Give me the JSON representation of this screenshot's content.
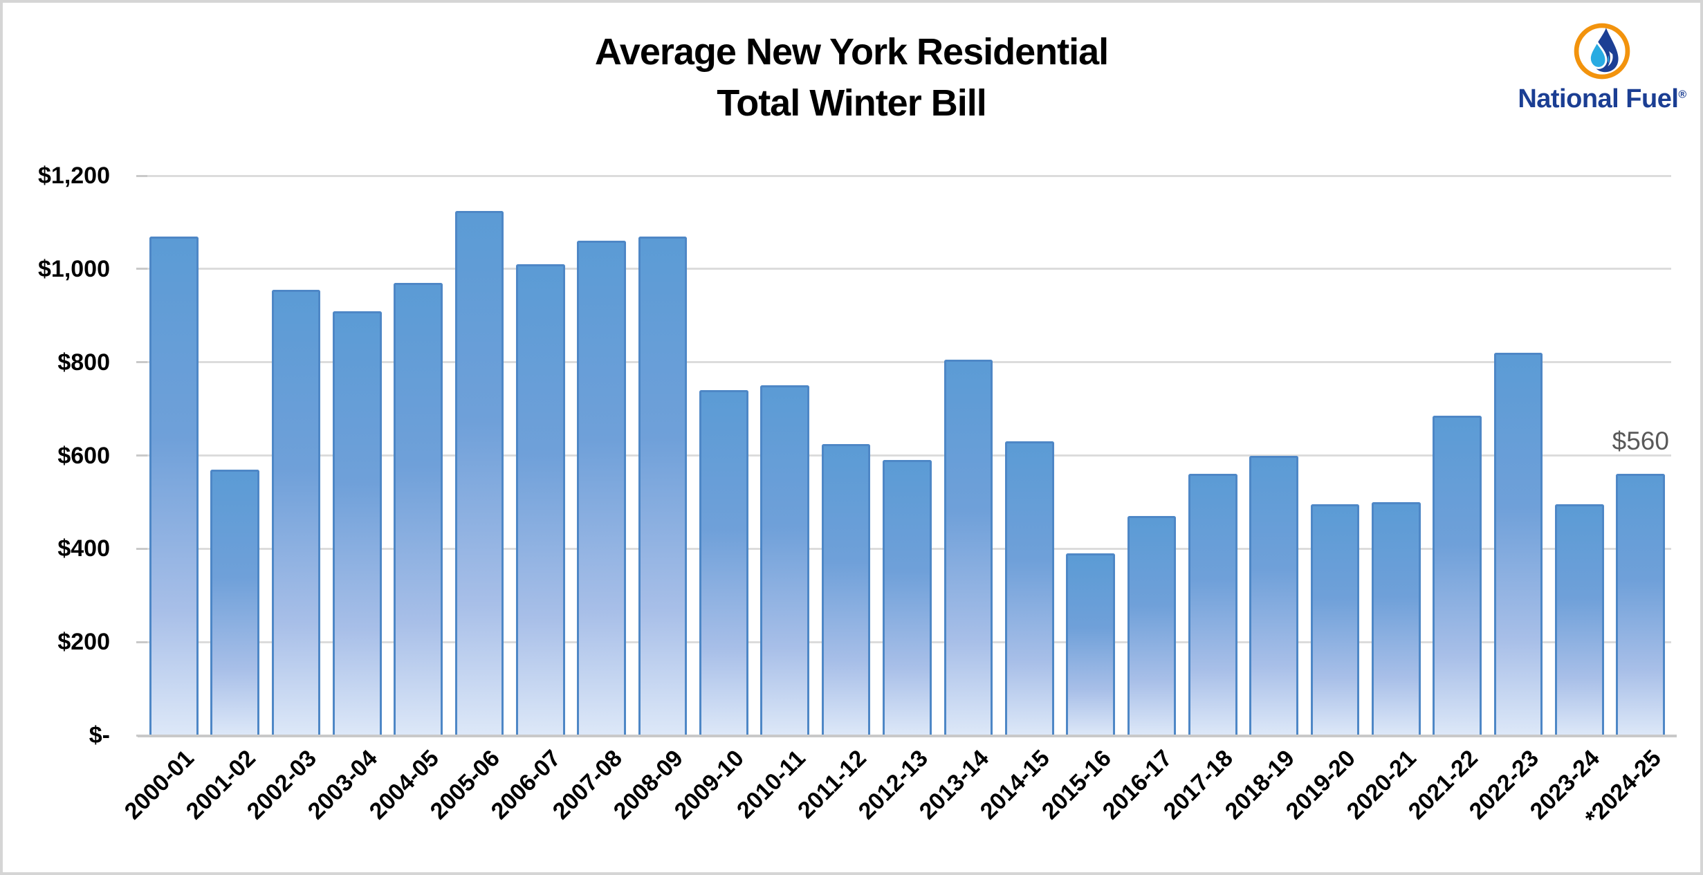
{
  "header": {
    "title_line1": "Average New York Residential",
    "title_line2": "Total Winter Bill"
  },
  "logo": {
    "name": "National Fuel",
    "registered_mark": "®",
    "colors": {
      "ring_orange": "#f2930d",
      "flame_dark_blue": "#1c3f94",
      "drop_light_blue": "#29abe2",
      "wordmark_blue": "#1b3e93"
    }
  },
  "chart_data": {
    "type": "bar",
    "title": "Average New York Residential Total Winter Bill",
    "categories": [
      "2000-01",
      "2001-02",
      "2002-03",
      "2003-04",
      "2004-05",
      "2005-06",
      "2006-07",
      "2007-08",
      "2008-09",
      "2009-10",
      "2010-11",
      "2011-12",
      "2012-13",
      "2013-14",
      "2014-15",
      "2015-16",
      "2016-17",
      "2017-18",
      "2018-19",
      "2019-20",
      "2020-21",
      "2021-22",
      "2022-23",
      "2023-24",
      "*2024-25"
    ],
    "values": [
      1070,
      570,
      955,
      910,
      970,
      1125,
      1010,
      1060,
      1070,
      740,
      750,
      625,
      590,
      805,
      630,
      390,
      470,
      560,
      600,
      495,
      500,
      685,
      820,
      495,
      560
    ],
    "xlabel": "",
    "ylabel": "",
    "ylim": [
      0,
      1200
    ],
    "ytick_step": 200,
    "ytick_labels": [
      "$-",
      "$200",
      "$400",
      "$600",
      "$800",
      "$1,000",
      "$1,200"
    ],
    "grid": true,
    "legend": "none",
    "bar_labels": [
      {
        "index": 24,
        "category": "*2024-25",
        "text": "$560"
      }
    ],
    "colors": {
      "bar_fill_top": "#5b9bd5",
      "bar_fill_bottom": "#dde8f8",
      "bar_border": "#4e87c6",
      "gridline": "#dcdcdc",
      "axis_line": "#c9c9c9",
      "tick_label": "#000000",
      "bar_label_text": "#595959"
    }
  }
}
